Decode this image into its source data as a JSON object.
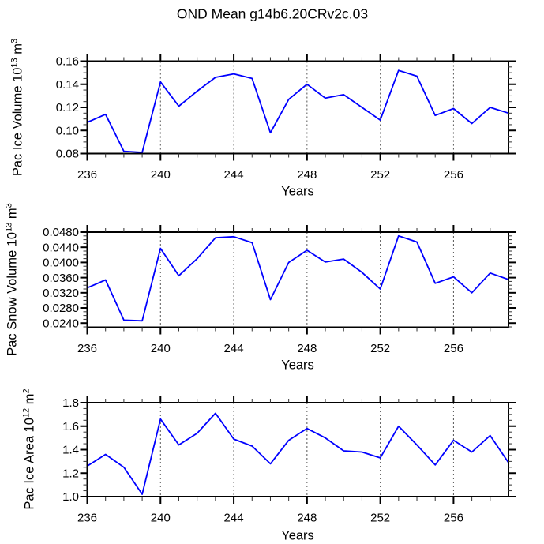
{
  "title": "OND Mean g14b6.20CRv2c.03",
  "line_color": "#0000ff",
  "frame_color": "#000000",
  "grid_color": "#555555",
  "chart_data": [
    {
      "type": "line",
      "title": "OND Mean g14b6.20CRv2c.03",
      "xlabel": "Years",
      "ylabel": "Pac Ice Volume 10^13 m^3",
      "ylabel_parts": {
        "text": "Pac Ice Volume 10",
        "sup1": "13",
        "text2": " m",
        "sup2": "3"
      },
      "x": [
        236,
        237,
        238,
        239,
        240,
        241,
        242,
        243,
        244,
        245,
        246,
        247,
        248,
        249,
        250,
        251,
        252,
        253,
        254,
        255,
        256,
        257,
        258,
        259
      ],
      "values": [
        0.107,
        0.114,
        0.082,
        0.081,
        0.142,
        0.121,
        0.134,
        0.146,
        0.149,
        0.145,
        0.098,
        0.127,
        0.14,
        0.128,
        0.131,
        0.12,
        0.109,
        0.152,
        0.147,
        0.113,
        0.119,
        0.106,
        0.12,
        0.115
      ],
      "xlim": [
        236,
        259
      ],
      "ylim": [
        0.08,
        0.16
      ],
      "xtick_values": [
        236,
        240,
        244,
        248,
        252,
        256
      ],
      "xtick_labels": [
        "236",
        "240",
        "244",
        "248",
        "252",
        "256"
      ],
      "xminor_step": 1,
      "ytick_values": [
        0.08,
        0.1,
        0.12,
        0.14,
        0.16
      ],
      "ytick_labels": [
        "0.08",
        "0.10",
        "0.12",
        "0.14",
        "0.16"
      ],
      "yminor_step": 0.005,
      "grid_x": [
        240,
        244,
        248,
        252,
        256
      ],
      "legend": "none"
    },
    {
      "type": "line",
      "title": "OND Mean g14b6.20CRv2c.03",
      "xlabel": "Years",
      "ylabel": "Pac Snow Volume 10^13 m^3",
      "ylabel_parts": {
        "text": "Pac Snow Volume 10",
        "sup1": "13",
        "text2": " m",
        "sup2": "3"
      },
      "x": [
        236,
        237,
        238,
        239,
        240,
        241,
        242,
        243,
        244,
        245,
        246,
        247,
        248,
        249,
        250,
        251,
        252,
        253,
        254,
        255,
        256,
        257,
        258,
        259
      ],
      "values": [
        0.0333,
        0.0354,
        0.0248,
        0.0246,
        0.0437,
        0.0365,
        0.041,
        0.0465,
        0.0468,
        0.0452,
        0.0302,
        0.04,
        0.0432,
        0.0401,
        0.0409,
        0.0374,
        0.033,
        0.047,
        0.0454,
        0.0345,
        0.0362,
        0.032,
        0.0372,
        0.0355
      ],
      "xlim": [
        236,
        259
      ],
      "ylim": [
        0.0229,
        0.048
      ],
      "xtick_values": [
        236,
        240,
        244,
        248,
        252,
        256
      ],
      "xtick_labels": [
        "236",
        "240",
        "244",
        "248",
        "252",
        "256"
      ],
      "xminor_step": 1,
      "ytick_values": [
        0.024,
        0.028,
        0.032,
        0.036,
        0.04,
        0.044,
        0.048
      ],
      "ytick_labels": [
        "0.0240",
        "0.0280",
        "0.0320",
        "0.0360",
        "0.0400",
        "0.0440",
        "0.0480"
      ],
      "yminor_step": 0.001,
      "grid_x": [
        240,
        244,
        248,
        252,
        256
      ],
      "legend": "none"
    },
    {
      "type": "line",
      "title": "OND Mean g14b6.20CRv2c.03",
      "xlabel": "Years",
      "ylabel": "Pac Ice Area 10^12 m^2",
      "ylabel_parts": {
        "text": "Pac Ice Area 10",
        "sup1": "12",
        "text2": " m",
        "sup2": "2"
      },
      "x": [
        236,
        237,
        238,
        239,
        240,
        241,
        242,
        243,
        244,
        245,
        246,
        247,
        248,
        249,
        250,
        251,
        252,
        253,
        254,
        255,
        256,
        257,
        258,
        259
      ],
      "values": [
        1.26,
        1.36,
        1.25,
        1.02,
        1.66,
        1.44,
        1.54,
        1.71,
        1.49,
        1.43,
        1.28,
        1.48,
        1.58,
        1.5,
        1.39,
        1.38,
        1.33,
        1.6,
        1.44,
        1.27,
        1.48,
        1.38,
        1.52,
        1.29
      ],
      "xlim": [
        236,
        259
      ],
      "ylim": [
        1.0,
        1.8
      ],
      "xtick_values": [
        236,
        240,
        244,
        248,
        252,
        256
      ],
      "xtick_labels": [
        "236",
        "240",
        "244",
        "248",
        "252",
        "256"
      ],
      "xminor_step": 1,
      "ytick_values": [
        1.0,
        1.2,
        1.4,
        1.6,
        1.8
      ],
      "ytick_labels": [
        "1.0",
        "1.2",
        "1.4",
        "1.6",
        "1.8"
      ],
      "yminor_step": 0.05,
      "grid_x": [
        240,
        244,
        248,
        252,
        256
      ],
      "legend": "none"
    }
  ]
}
